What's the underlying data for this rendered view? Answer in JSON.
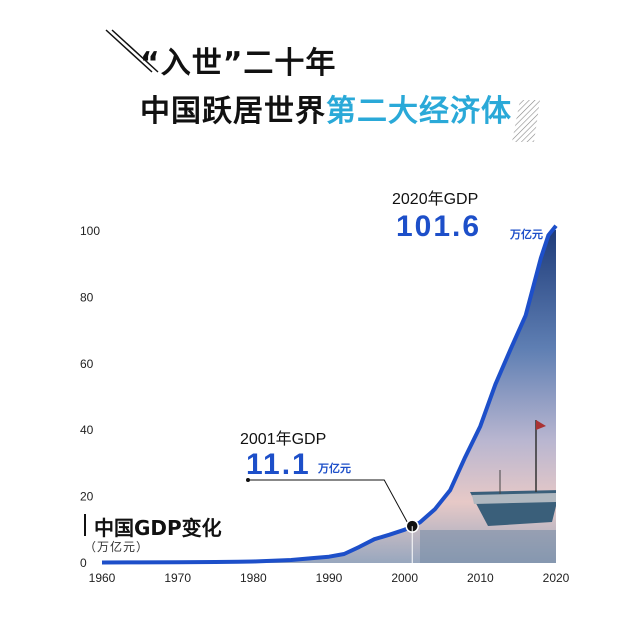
{
  "headline": {
    "line1": "“入世”二十年",
    "line2_dark": "中国跃居世界",
    "line2_accent": "第二大经济体"
  },
  "legend": {
    "title": "中国GDP变化",
    "unit": "（万亿元）"
  },
  "colors": {
    "accent_title": "#2aa9d8",
    "line": "#1d4fc9",
    "value_text": "#1d4fc9"
  },
  "chart_data": {
    "type": "area",
    "title": "中国GDP变化",
    "ylabel": "（万亿元）",
    "xlim": [
      1960,
      2020
    ],
    "ylim": [
      0,
      100
    ],
    "x_ticks": [
      1960,
      1970,
      1980,
      1990,
      2000,
      2010,
      2020
    ],
    "y_ticks": [
      0,
      20,
      40,
      60,
      80,
      100
    ],
    "series": [
      {
        "x": [
          1960,
          1965,
          1970,
          1975,
          1978,
          1980,
          1985,
          1988,
          1990,
          1992,
          1994,
          1996,
          1998,
          2000,
          2001,
          2002,
          2004,
          2006,
          2008,
          2010,
          2012,
          2014,
          2016,
          2018,
          2019,
          2020
        ],
        "values": [
          0.15,
          0.18,
          0.23,
          0.3,
          0.37,
          0.46,
          0.91,
          1.52,
          1.89,
          2.72,
          4.86,
          7.18,
          8.52,
          10.03,
          11.1,
          12.2,
          16.2,
          21.9,
          31.9,
          41.2,
          53.9,
          64.4,
          74.6,
          91.9,
          98.7,
          101.6
        ]
      }
    ],
    "annotations": [
      {
        "x": 2001,
        "y": 11.1,
        "label": "2001年GDP",
        "value": "11.1",
        "unit": "万亿元"
      },
      {
        "x": 2020,
        "y": 101.6,
        "label": "2020年GDP",
        "value": "101.6",
        "unit": "万亿元"
      }
    ]
  }
}
